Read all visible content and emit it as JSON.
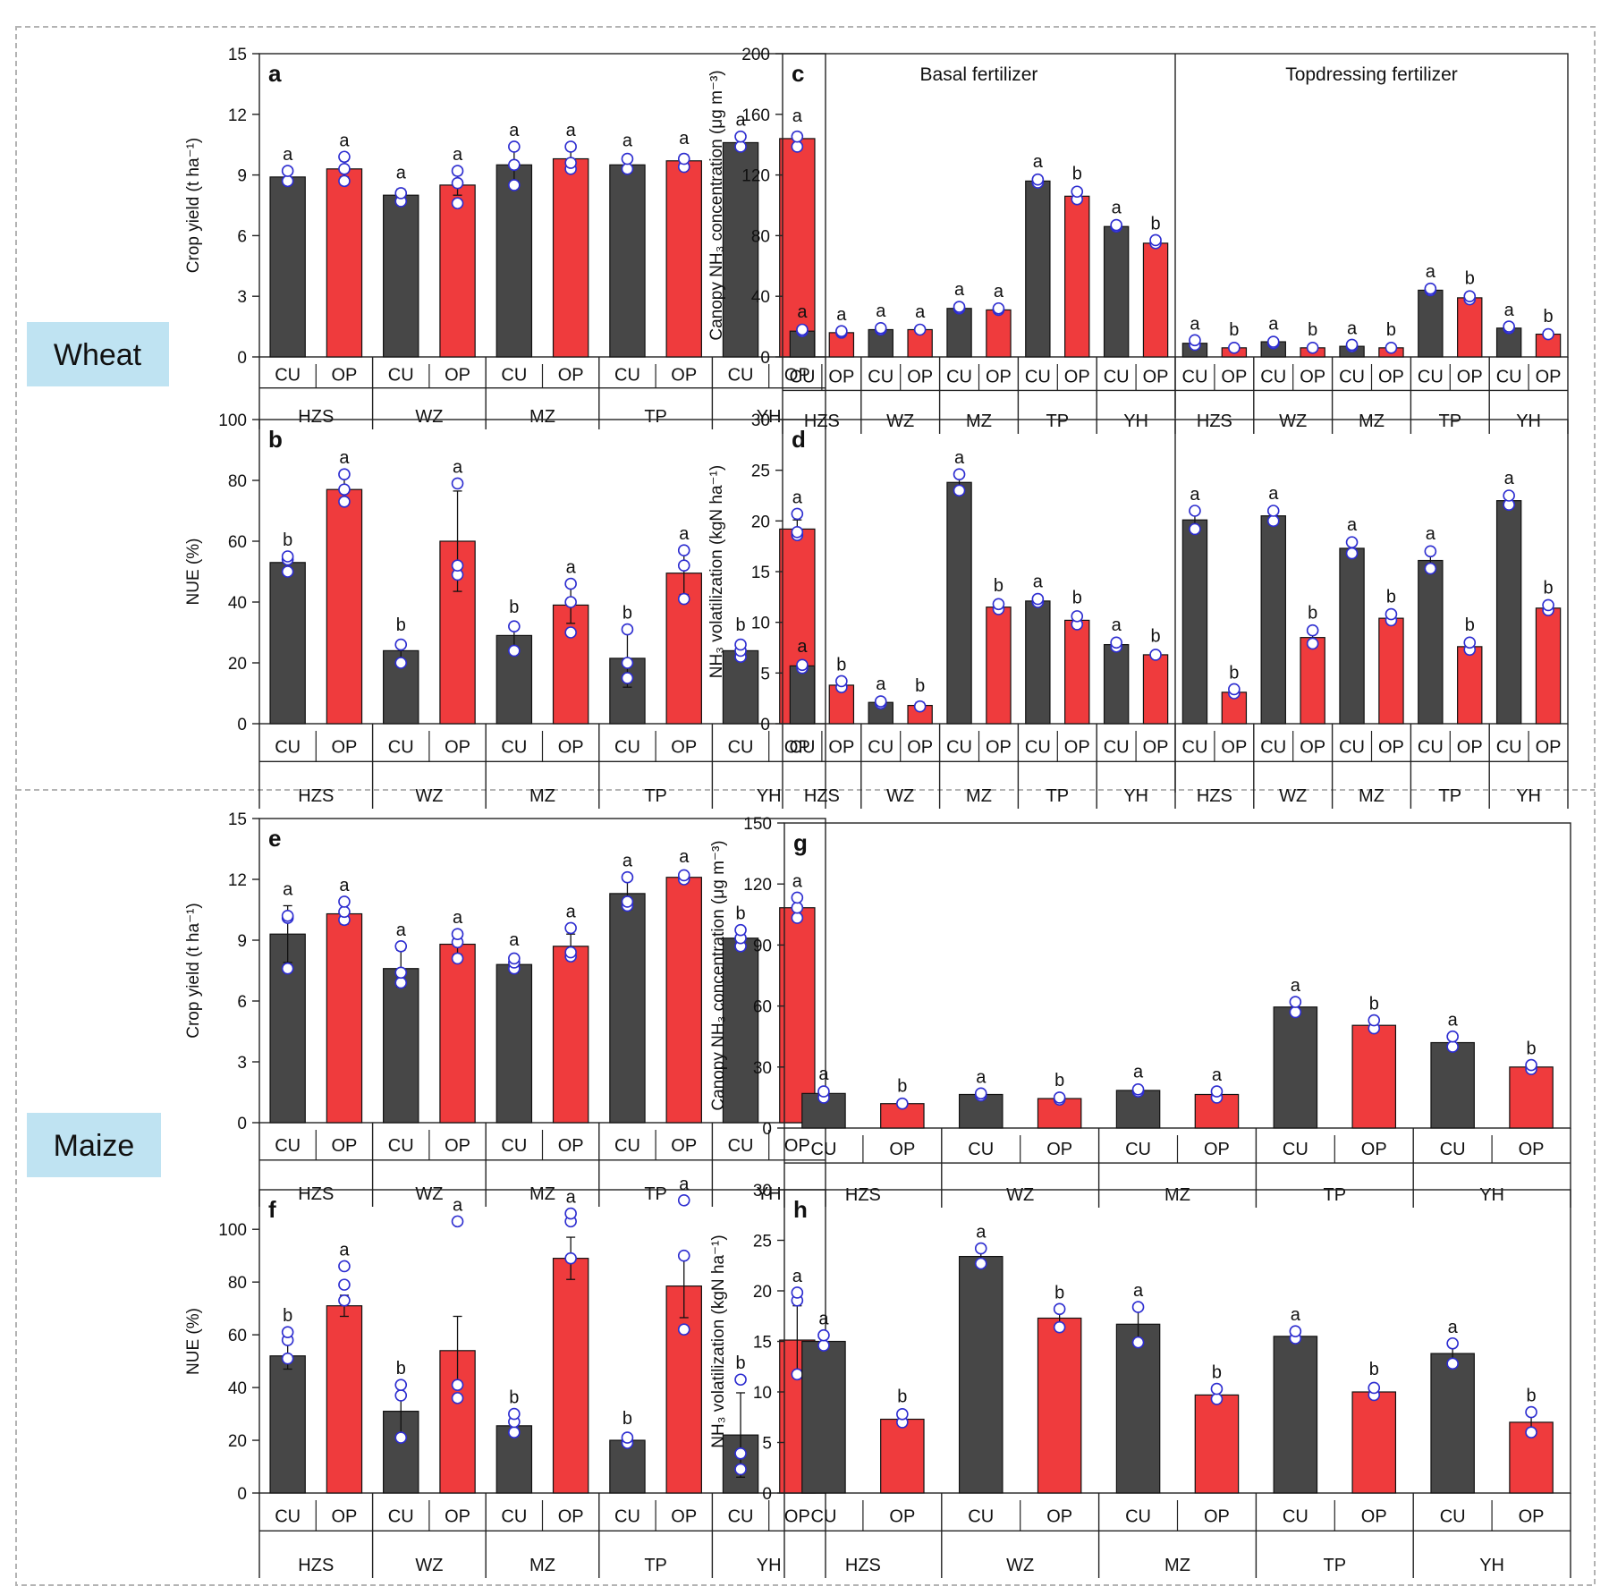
{
  "figure": {
    "crop_labels": {
      "wheat": "Wheat",
      "maize": "Maize"
    },
    "colors": {
      "cu": "#474747",
      "op": "#ef3b3d",
      "circle": "#2d2dd0",
      "label_bg": "#bfe3f2",
      "dash": "#b3b3b3"
    }
  },
  "chart_data": [
    {
      "id": "a",
      "type": "bar",
      "panel_label": "a",
      "ylabel": "Crop yield (t ha⁻¹)",
      "ylim": [
        0,
        15
      ],
      "yticks": [
        0,
        3,
        6,
        9,
        12,
        15
      ],
      "subcategories": [
        "CU",
        "OP"
      ],
      "categories": [
        "HZS",
        "WZ",
        "MZ",
        "TP",
        "YH"
      ],
      "values": [
        [
          8.9,
          9.3
        ],
        [
          8.0,
          8.5
        ],
        [
          9.5,
          9.8
        ],
        [
          9.5,
          9.7
        ],
        [
          10.6,
          10.8
        ]
      ],
      "err": [
        [
          0.3,
          0.4
        ],
        [
          0.3,
          0.5
        ],
        [
          0.8,
          0.5
        ],
        [
          0.4,
          0.3
        ],
        [
          0.3,
          0.3
        ]
      ],
      "letters": [
        [
          "a",
          "a"
        ],
        [
          "a",
          "a"
        ],
        [
          "a",
          "a"
        ],
        [
          "a",
          "a"
        ],
        [
          "a",
          "a"
        ]
      ],
      "points": [
        [
          [
            8.7,
            9.2
          ],
          [
            8.7,
            9.3,
            9.9
          ]
        ],
        [
          [
            7.7,
            8.1
          ],
          [
            7.6,
            8.6,
            9.2
          ]
        ],
        [
          [
            8.5,
            9.5,
            10.4
          ],
          [
            9.3,
            9.6,
            10.4
          ]
        ],
        [
          [
            9.3,
            9.8
          ],
          [
            9.4,
            9.8
          ]
        ],
        [
          [
            10.4,
            10.9
          ],
          [
            10.4,
            10.9
          ]
        ]
      ]
    },
    {
      "id": "b",
      "type": "bar",
      "panel_label": "b",
      "ylabel": "NUE (%)",
      "ylim": [
        0,
        100
      ],
      "yticks": [
        0,
        20,
        40,
        60,
        80,
        100
      ],
      "subcategories": [
        "CU",
        "OP"
      ],
      "categories": [
        "HZS",
        "WZ",
        "MZ",
        "TP",
        "YH"
      ],
      "values": [
        [
          53,
          77
        ],
        [
          24,
          60
        ],
        [
          29,
          39
        ],
        [
          21.5,
          49.5
        ],
        [
          24,
          64
        ]
      ],
      "err": [
        [
          2,
          4
        ],
        [
          3,
          16.5
        ],
        [
          4,
          6
        ],
        [
          9.5,
          7
        ],
        [
          3,
          3
        ]
      ],
      "letters": [
        [
          "b",
          "a"
        ],
        [
          "b",
          "a"
        ],
        [
          "b",
          "a"
        ],
        [
          "b",
          "a"
        ],
        [
          "b",
          "a"
        ]
      ],
      "points": [
        [
          [
            50,
            54,
            55
          ],
          [
            73,
            77,
            82
          ]
        ],
        [
          [
            20,
            26
          ],
          [
            49,
            52,
            79
          ]
        ],
        [
          [
            24,
            32
          ],
          [
            30,
            40,
            46
          ]
        ],
        [
          [
            15,
            20,
            31
          ],
          [
            41,
            52,
            57
          ]
        ],
        [
          [
            22,
            24,
            26
          ],
          [
            62,
            63,
            69
          ]
        ]
      ]
    },
    {
      "id": "c",
      "type": "bar",
      "panel_label": "c",
      "ylabel": "Canopy NH₃ concentration (μg m⁻³)",
      "ylim": [
        0,
        200
      ],
      "yticks": [
        0,
        40,
        80,
        120,
        160,
        200
      ],
      "subcategories": [
        "CU",
        "OP"
      ],
      "categories": [
        "HZS",
        "WZ",
        "MZ",
        "TP",
        "YH",
        "HZS",
        "WZ",
        "MZ",
        "TP",
        "YH"
      ],
      "sections": [
        "Basal fertilizer",
        "Topdressing fertilizer"
      ],
      "values": [
        [
          17,
          16
        ],
        [
          18,
          18
        ],
        [
          32,
          31
        ],
        [
          116,
          106
        ],
        [
          86,
          75
        ],
        [
          9,
          6
        ],
        [
          10,
          6
        ],
        [
          7,
          6
        ],
        [
          44,
          39
        ],
        [
          19,
          15
        ]
      ],
      "err": [
        [
          2,
          1
        ],
        [
          1.5,
          1
        ],
        [
          1.5,
          1.5
        ],
        [
          2,
          4
        ],
        [
          1.5,
          1.5
        ],
        [
          2,
          1
        ],
        [
          1,
          1
        ],
        [
          1,
          1
        ],
        [
          1.5,
          2
        ],
        [
          1,
          1
        ]
      ],
      "letters": [
        [
          "a",
          "a"
        ],
        [
          "a",
          "a"
        ],
        [
          "a",
          "a"
        ],
        [
          "a",
          "b"
        ],
        [
          "a",
          "b"
        ],
        [
          "a",
          "b"
        ],
        [
          "a",
          "b"
        ],
        [
          "a",
          "b"
        ],
        [
          "a",
          "b"
        ],
        [
          "a",
          "b"
        ]
      ],
      "points": [
        [
          [
            17,
            18
          ],
          [
            16,
            17
          ]
        ],
        [
          [
            18,
            19
          ],
          [
            18
          ]
        ],
        [
          [
            32,
            33
          ],
          [
            31,
            32
          ]
        ],
        [
          [
            115,
            117
          ],
          [
            104,
            109
          ]
        ],
        [
          [
            86,
            87
          ],
          [
            75,
            77
          ]
        ],
        [
          [
            8,
            11
          ],
          [
            6
          ]
        ],
        [
          [
            9,
            10
          ],
          [
            6
          ]
        ],
        [
          [
            7,
            8
          ],
          [
            6
          ]
        ],
        [
          [
            44,
            45
          ],
          [
            38,
            40
          ]
        ],
        [
          [
            19,
            20
          ],
          [
            15
          ]
        ]
      ]
    },
    {
      "id": "d",
      "type": "bar",
      "panel_label": "d",
      "ylabel": "NH₃ volatilization (kgN ha⁻¹)",
      "ylim": [
        0,
        30
      ],
      "yticks": [
        0,
        5,
        10,
        15,
        20,
        25,
        30
      ],
      "subcategories": [
        "CU",
        "OP"
      ],
      "categories": [
        "HZS",
        "WZ",
        "MZ",
        "TP",
        "YH",
        "HZS",
        "WZ",
        "MZ",
        "TP",
        "YH"
      ],
      "values": [
        [
          5.7,
          3.8
        ],
        [
          2.1,
          1.8
        ],
        [
          23.8,
          11.5
        ],
        [
          12.1,
          10.2
        ],
        [
          7.8,
          6.8
        ],
        [
          20.1,
          3.1
        ],
        [
          20.5,
          8.5
        ],
        [
          17.3,
          10.4
        ],
        [
          16.1,
          7.6
        ],
        [
          22,
          11.4
        ]
      ],
      "err": [
        [
          0.3,
          0.4
        ],
        [
          0.2,
          0.3
        ],
        [
          0.8,
          0.5
        ],
        [
          0.3,
          0.6
        ],
        [
          0.3,
          0.2
        ],
        [
          0.9,
          0.3
        ],
        [
          0.6,
          0.8
        ],
        [
          0.7,
          0.5
        ],
        [
          1,
          0.5
        ],
        [
          0.6,
          0.4
        ]
      ],
      "letters": [
        [
          "a",
          "b"
        ],
        [
          "a",
          "b"
        ],
        [
          "a",
          "b"
        ],
        [
          "a",
          "b"
        ],
        [
          "a",
          "b"
        ],
        [
          "a",
          "b"
        ],
        [
          "a",
          "b"
        ],
        [
          "a",
          "b"
        ],
        [
          "a",
          "b"
        ],
        [
          "a",
          "b"
        ]
      ],
      "points": [
        [
          [
            5.5,
            5.8
          ],
          [
            3.6,
            4.2
          ]
        ],
        [
          [
            2,
            2.2
          ],
          [
            1.7
          ]
        ],
        [
          [
            23,
            24.6
          ],
          [
            11.3,
            11.8
          ]
        ],
        [
          [
            12,
            12.3
          ],
          [
            9.8,
            10.6
          ]
        ],
        [
          [
            7.6,
            8
          ],
          [
            6.8
          ]
        ],
        [
          [
            19.2,
            21
          ],
          [
            3,
            3.4
          ]
        ],
        [
          [
            20,
            21
          ],
          [
            7.9,
            9.2
          ]
        ],
        [
          [
            16.8,
            17.9
          ],
          [
            10.2,
            10.8
          ]
        ],
        [
          [
            15.3,
            17
          ],
          [
            7.3,
            8
          ]
        ],
        [
          [
            21.6,
            22.5
          ],
          [
            11.2,
            11.7
          ]
        ]
      ]
    },
    {
      "id": "e",
      "type": "bar",
      "panel_label": "e",
      "ylabel": "Crop yield (t ha⁻¹)",
      "ylim": [
        0,
        15
      ],
      "yticks": [
        0,
        3,
        6,
        9,
        12,
        15
      ],
      "subcategories": [
        "CU",
        "OP"
      ],
      "categories": [
        "HZS",
        "WZ",
        "MZ",
        "TP",
        "YH"
      ],
      "values": [
        [
          9.3,
          10.3
        ],
        [
          7.6,
          8.8
        ],
        [
          7.8,
          8.7
        ],
        [
          11.3,
          12.1
        ],
        [
          9.1,
          10.6
        ]
      ],
      "err": [
        [
          1.4,
          0.5
        ],
        [
          0.9,
          0.5
        ],
        [
          0.4,
          0.6
        ],
        [
          0.8,
          0.2
        ],
        [
          0.4,
          0.5
        ]
      ],
      "letters": [
        [
          "a",
          "a"
        ],
        [
          "a",
          "a"
        ],
        [
          "a",
          "a"
        ],
        [
          "a",
          "a"
        ],
        [
          "b",
          "a"
        ]
      ],
      "points": [
        [
          [
            7.6,
            10.1,
            10.2
          ],
          [
            10,
            10.4,
            10.9
          ]
        ],
        [
          [
            6.9,
            7.4,
            8.7
          ],
          [
            8.1,
            8.9,
            9.3
          ]
        ],
        [
          [
            7.6,
            7.9,
            8.1
          ],
          [
            8.2,
            8.4,
            9.6
          ]
        ],
        [
          [
            10.7,
            10.9,
            12.1
          ],
          [
            12,
            12.2
          ]
        ],
        [
          [
            8.7,
            9.1,
            9.5
          ],
          [
            10.1,
            10.6,
            11.1
          ]
        ]
      ]
    },
    {
      "id": "f",
      "type": "bar",
      "panel_label": "f",
      "ylabel": "NUE (%)",
      "ylim": [
        0,
        115
      ],
      "yticks": [
        0,
        20,
        40,
        60,
        80,
        100
      ],
      "subcategories": [
        "CU",
        "OP"
      ],
      "categories": [
        "HZS",
        "WZ",
        "MZ",
        "TP",
        "YH"
      ],
      "values": [
        [
          52,
          71
        ],
        [
          31,
          54
        ],
        [
          25.5,
          89
        ],
        [
          20,
          78.5
        ],
        [
          22,
          58
        ]
      ],
      "err": [
        [
          5,
          4
        ],
        [
          10,
          13
        ],
        [
          3,
          8
        ],
        [
          2,
          12
        ],
        [
          16,
          13
        ]
      ],
      "letters": [
        [
          "b",
          "a"
        ],
        [
          "b",
          "a"
        ],
        [
          "b",
          "a"
        ],
        [
          "b",
          "a"
        ],
        [
          "b",
          "a"
        ]
      ],
      "points": [
        [
          [
            51,
            58,
            61
          ],
          [
            73,
            79,
            86
          ]
        ],
        [
          [
            21,
            37,
            41
          ],
          [
            36,
            41,
            103
          ]
        ],
        [
          [
            23,
            27,
            30
          ],
          [
            89,
            103,
            106
          ]
        ],
        [
          [
            19,
            21
          ],
          [
            62,
            90,
            111
          ]
        ],
        [
          [
            9,
            15,
            43
          ],
          [
            45,
            73,
            76
          ]
        ]
      ]
    },
    {
      "id": "g",
      "type": "bar",
      "panel_label": "g",
      "ylabel": "Canopy NH₃ concentration (μg m⁻³)",
      "ylim": [
        0,
        150
      ],
      "yticks": [
        0,
        30,
        60,
        90,
        120,
        150
      ],
      "subcategories": [
        "CU",
        "OP"
      ],
      "categories": [
        "HZS",
        "WZ",
        "MZ",
        "TP",
        "YH"
      ],
      "values": [
        [
          17,
          12
        ],
        [
          16.5,
          14.5
        ],
        [
          18.5,
          16.5
        ],
        [
          59.5,
          50.5
        ],
        [
          42,
          30
        ]
      ],
      "err": [
        [
          1.5,
          0.5
        ],
        [
          0.5,
          1
        ],
        [
          1,
          1.5
        ],
        [
          2,
          2
        ],
        [
          2,
          1
        ]
      ],
      "letters": [
        [
          "a",
          "b"
        ],
        [
          "a",
          "b"
        ],
        [
          "a",
          "a"
        ],
        [
          "a",
          "b"
        ],
        [
          "a",
          "b"
        ]
      ],
      "points": [
        [
          [
            15,
            18
          ],
          [
            12
          ]
        ],
        [
          [
            16,
            17
          ],
          [
            14,
            15
          ]
        ],
        [
          [
            18,
            19
          ],
          [
            15,
            18
          ]
        ],
        [
          [
            57,
            62
          ],
          [
            49,
            53
          ]
        ],
        [
          [
            40,
            45
          ],
          [
            29,
            31
          ]
        ]
      ]
    },
    {
      "id": "h",
      "type": "bar",
      "panel_label": "h",
      "ylabel": "NH₃ volatilization (kgN ha⁻¹)",
      "ylim": [
        0,
        30
      ],
      "yticks": [
        0,
        5,
        10,
        15,
        20,
        25,
        30
      ],
      "subcategories": [
        "CU",
        "OP"
      ],
      "categories": [
        "HZS",
        "WZ",
        "MZ",
        "TP",
        "YH"
      ],
      "values": [
        [
          15,
          7.3
        ],
        [
          23.4,
          17.3
        ],
        [
          16.7,
          9.7
        ],
        [
          15.5,
          10
        ],
        [
          13.8,
          7
        ]
      ],
      "err": [
        [
          0.6,
          0.6
        ],
        [
          0.7,
          0.8
        ],
        [
          1.5,
          0.6
        ],
        [
          0.5,
          0.6
        ],
        [
          1,
          0.9
        ]
      ],
      "letters": [
        [
          "a",
          "b"
        ],
        [
          "a",
          "b"
        ],
        [
          "a",
          "b"
        ],
        [
          "a",
          "b"
        ],
        [
          "a",
          "b"
        ]
      ],
      "points": [
        [
          [
            14.6,
            15.6
          ],
          [
            7,
            7.8
          ]
        ],
        [
          [
            22.7,
            24.2
          ],
          [
            16.4,
            18.2
          ]
        ],
        [
          [
            14.9,
            18.4
          ],
          [
            9.3,
            10.3
          ]
        ],
        [
          [
            15.3,
            16
          ],
          [
            9.7,
            10.4
          ]
        ],
        [
          [
            12.8,
            14.8
          ],
          [
            6,
            8
          ]
        ]
      ]
    }
  ]
}
